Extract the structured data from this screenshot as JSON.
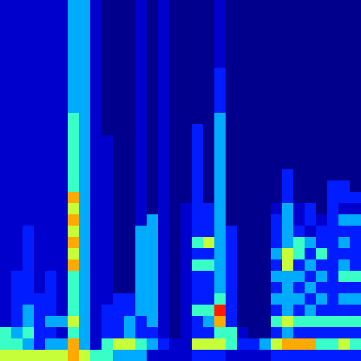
{
  "chart_data": {
    "type": "heatmap",
    "color": "jet",
    "tick_labels": false,
    "zlim": [
      0,
      9
    ],
    "z": [
      [
        1,
        1,
        1,
        1,
        1,
        1,
        3,
        3,
        1,
        0,
        0,
        0,
        1,
        0,
        1,
        0,
        0,
        0,
        0,
        1,
        0,
        0,
        0,
        0,
        0,
        0,
        0,
        0,
        0,
        0,
        0,
        0
      ],
      [
        1,
        1,
        1,
        1,
        1,
        1,
        3,
        3,
        1,
        0,
        0,
        0,
        1,
        0,
        1,
        0,
        0,
        0,
        0,
        1,
        0,
        0,
        0,
        0,
        0,
        0,
        0,
        0,
        0,
        0,
        0,
        0
      ],
      [
        1,
        1,
        1,
        1,
        1,
        1,
        3,
        3,
        1,
        0,
        0,
        0,
        1,
        0,
        1,
        0,
        0,
        0,
        0,
        1,
        0,
        0,
        0,
        0,
        0,
        0,
        0,
        0,
        0,
        0,
        0,
        0
      ],
      [
        1,
        1,
        1,
        1,
        1,
        1,
        3,
        3,
        1,
        0,
        0,
        0,
        1,
        0,
        1,
        0,
        0,
        0,
        0,
        1,
        0,
        0,
        0,
        0,
        0,
        0,
        0,
        0,
        0,
        0,
        0,
        0
      ],
      [
        1,
        1,
        1,
        1,
        1,
        1,
        3,
        3,
        1,
        0,
        0,
        0,
        1,
        0,
        1,
        0,
        0,
        0,
        0,
        1,
        0,
        0,
        0,
        0,
        0,
        0,
        0,
        0,
        0,
        0,
        0,
        0
      ],
      [
        1,
        1,
        1,
        1,
        1,
        1,
        3,
        3,
        1,
        0,
        0,
        0,
        1,
        0,
        1,
        0,
        0,
        0,
        0,
        1,
        0,
        0,
        0,
        0,
        0,
        0,
        0,
        0,
        0,
        0,
        0,
        0
      ],
      [
        1,
        1,
        1,
        1,
        1,
        1,
        3,
        3,
        1,
        0,
        0,
        0,
        1,
        0,
        1,
        0,
        0,
        0,
        0,
        2,
        0,
        0,
        0,
        0,
        0,
        0,
        0,
        0,
        0,
        0,
        0,
        0
      ],
      [
        1,
        1,
        1,
        1,
        1,
        1,
        3,
        3,
        1,
        0,
        0,
        0,
        1,
        0,
        1,
        0,
        0,
        0,
        0,
        2,
        0,
        0,
        0,
        0,
        0,
        0,
        0,
        0,
        0,
        0,
        0,
        0
      ],
      [
        1,
        1,
        1,
        1,
        1,
        1,
        3,
        3,
        1,
        0,
        0,
        0,
        1,
        0,
        1,
        0,
        0,
        0,
        0,
        2,
        0,
        0,
        0,
        0,
        0,
        0,
        0,
        0,
        0,
        0,
        0,
        0
      ],
      [
        1,
        1,
        1,
        1,
        1,
        1,
        3,
        3,
        1,
        0,
        0,
        0,
        1,
        0,
        1,
        0,
        0,
        0,
        0,
        2,
        0,
        0,
        0,
        0,
        0,
        0,
        0,
        0,
        0,
        0,
        0,
        0
      ],
      [
        1,
        1,
        1,
        1,
        1,
        1,
        4,
        3,
        1,
        0,
        0,
        0,
        1,
        0,
        1,
        0,
        0,
        0,
        0,
        3,
        0,
        0,
        0,
        0,
        0,
        0,
        0,
        0,
        0,
        0,
        0,
        0
      ],
      [
        1,
        1,
        1,
        1,
        1,
        1,
        4,
        3,
        1,
        0,
        0,
        0,
        1,
        0,
        1,
        0,
        0,
        2,
        0,
        3,
        0,
        0,
        0,
        0,
        0,
        0,
        0,
        0,
        0,
        0,
        0,
        0
      ],
      [
        1,
        1,
        1,
        1,
        1,
        1,
        4,
        3,
        1,
        1,
        0,
        0,
        1,
        0,
        1,
        0,
        0,
        2,
        0,
        3,
        0,
        0,
        0,
        0,
        0,
        0,
        0,
        0,
        0,
        0,
        0,
        0
      ],
      [
        1,
        1,
        1,
        1,
        1,
        1,
        4,
        3,
        1,
        1,
        0,
        0,
        1,
        0,
        1,
        0,
        0,
        2,
        0,
        3,
        0,
        0,
        0,
        0,
        0,
        0,
        0,
        0,
        0,
        0,
        0,
        0
      ],
      [
        1,
        1,
        1,
        1,
        1,
        1,
        4,
        3,
        1,
        1,
        0,
        0,
        1,
        0,
        1,
        0,
        0,
        2,
        0,
        3,
        0,
        0,
        0,
        0,
        0,
        0,
        0,
        0,
        0,
        0,
        0,
        0
      ],
      [
        1,
        1,
        1,
        1,
        1,
        1,
        4,
        3,
        1,
        1,
        0,
        0,
        1,
        0,
        1,
        0,
        0,
        2,
        0,
        3,
        0,
        0,
        0,
        0,
        0,
        2,
        0,
        0,
        0,
        0,
        0,
        0
      ],
      [
        1,
        1,
        1,
        1,
        1,
        1,
        4,
        3,
        1,
        1,
        0,
        0,
        1,
        0,
        1,
        0,
        0,
        2,
        0,
        3,
        0,
        0,
        0,
        0,
        0,
        2,
        0,
        0,
        0,
        2,
        2,
        0
      ],
      [
        1,
        1,
        1,
        1,
        1,
        1,
        6,
        3,
        1,
        1,
        0,
        0,
        1,
        0,
        1,
        0,
        0,
        2,
        0,
        3,
        0,
        0,
        0,
        0,
        0,
        2,
        0,
        0,
        0,
        2,
        2,
        2
      ],
      [
        1,
        1,
        1,
        1,
        1,
        1,
        5,
        3,
        1,
        1,
        0,
        0,
        1,
        0,
        1,
        0,
        1,
        2,
        2,
        3,
        0,
        0,
        0,
        0,
        1,
        3,
        1,
        2,
        0,
        2,
        1,
        1
      ],
      [
        1,
        1,
        1,
        1,
        1,
        1,
        6,
        3,
        1,
        1,
        0,
        0,
        1,
        3,
        1,
        0,
        1,
        2,
        2,
        3,
        0,
        0,
        0,
        0,
        2,
        3,
        1,
        2,
        1,
        2,
        3,
        3
      ],
      [
        1,
        1,
        2,
        1,
        1,
        1,
        5,
        3,
        1,
        1,
        0,
        0,
        3,
        3,
        1,
        0,
        1,
        2,
        2,
        3,
        2,
        0,
        0,
        0,
        2,
        3,
        2,
        1,
        2,
        2,
        2,
        2
      ],
      [
        1,
        1,
        2,
        1,
        1,
        1,
        6,
        3,
        1,
        1,
        0,
        0,
        3,
        3,
        1,
        0,
        1,
        4,
        5,
        3,
        2,
        0,
        0,
        0,
        2,
        3,
        4,
        3,
        2,
        2,
        3,
        2
      ],
      [
        1,
        1,
        2,
        1,
        1,
        1,
        5,
        3,
        1,
        1,
        0,
        0,
        3,
        3,
        1,
        0,
        1,
        2,
        2,
        3,
        2,
        0,
        0,
        0,
        3,
        5,
        4,
        2,
        4,
        2,
        2,
        2
      ],
      [
        1,
        1,
        2,
        1,
        1,
        1,
        6,
        3,
        1,
        1,
        0,
        0,
        3,
        3,
        1,
        0,
        1,
        4,
        4,
        3,
        2,
        0,
        0,
        0,
        2,
        5,
        2,
        3,
        2,
        2,
        3,
        2
      ],
      [
        1,
        2,
        2,
        1,
        2,
        1,
        4,
        3,
        1,
        1,
        0,
        0,
        3,
        3,
        1,
        0,
        1,
        2,
        2,
        3,
        2,
        0,
        0,
        0,
        3,
        3,
        3,
        2,
        3,
        2,
        4,
        4
      ],
      [
        1,
        2,
        2,
        1,
        2,
        1,
        4,
        3,
        1,
        1,
        0,
        0,
        3,
        3,
        1,
        0,
        1,
        2,
        2,
        3,
        2,
        0,
        0,
        0,
        2,
        3,
        2,
        3,
        2,
        2,
        2,
        2
      ],
      [
        1,
        2,
        2,
        2,
        2,
        1,
        4,
        3,
        1,
        1,
        2,
        2,
        3,
        3,
        1,
        0,
        1,
        2,
        2,
        4,
        2,
        0,
        0,
        0,
        3,
        3,
        3,
        2,
        3,
        2,
        3,
        3
      ],
      [
        1,
        2,
        3,
        2,
        2,
        1,
        4,
        3,
        1,
        2,
        2,
        2,
        3,
        3,
        1,
        0,
        1,
        4,
        4,
        7,
        2,
        0,
        0,
        0,
        2,
        3,
        2,
        3,
        2,
        2,
        2,
        2
      ],
      [
        1,
        2,
        3,
        2,
        3,
        3,
        5,
        3,
        1,
        2,
        2,
        3,
        2,
        3,
        1,
        0,
        1,
        2,
        3,
        6,
        2,
        0,
        0,
        0,
        4,
        5,
        4,
        4,
        4,
        4,
        4,
        4
      ],
      [
        4,
        3,
        4,
        2,
        2,
        1,
        4,
        3,
        1,
        2,
        2,
        3,
        2,
        2,
        1,
        0,
        1,
        2,
        2,
        4,
        4,
        1,
        0,
        0,
        2,
        3,
        2,
        2,
        2,
        2,
        2,
        2
      ],
      [
        4,
        4,
        3,
        2,
        3,
        3,
        6,
        3,
        1,
        4,
        5,
        5,
        4,
        3,
        2,
        1,
        1,
        5,
        5,
        5,
        4,
        2,
        2,
        3,
        5,
        6,
        6,
        6,
        4,
        4,
        5,
        4
      ],
      [
        5,
        5,
        5,
        5,
        5,
        5,
        6,
        5,
        4,
        4,
        3,
        3,
        3,
        1,
        1,
        1,
        1,
        2,
        2,
        2,
        1,
        1,
        1,
        1,
        2,
        2,
        2,
        2,
        2,
        2,
        2,
        2
      ]
    ]
  }
}
